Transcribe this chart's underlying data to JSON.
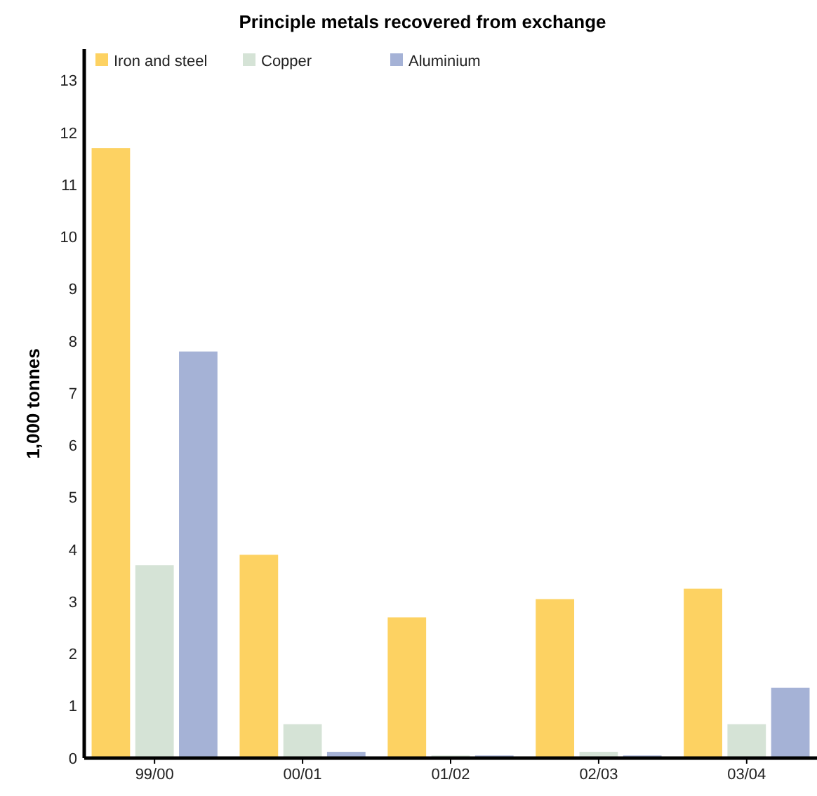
{
  "chart_data": {
    "type": "bar",
    "title": "Principle metals recovered from exchange",
    "ylabel": "1,000 tonnes",
    "categories": [
      "99/00",
      "00/01",
      "01/02",
      "02/03",
      "03/04"
    ],
    "series": [
      {
        "name": "Iron and steel",
        "color": "#fdd262",
        "values": [
          11.7,
          3.9,
          2.7,
          3.05,
          3.25
        ]
      },
      {
        "name": "Copper",
        "color": "#d5e3d6",
        "values": [
          3.7,
          0.65,
          0.05,
          0.12,
          0.65
        ]
      },
      {
        "name": "Aluminium",
        "color": "#a5b2d6",
        "values": [
          7.8,
          0.12,
          0.05,
          0.05,
          1.35
        ]
      }
    ],
    "ylim": [
      0,
      13.6
    ],
    "yticks": [
      0,
      1,
      2,
      3,
      4,
      5,
      6,
      7,
      8,
      9,
      10,
      11,
      12,
      13
    ],
    "grid": false,
    "legend": "top left"
  }
}
